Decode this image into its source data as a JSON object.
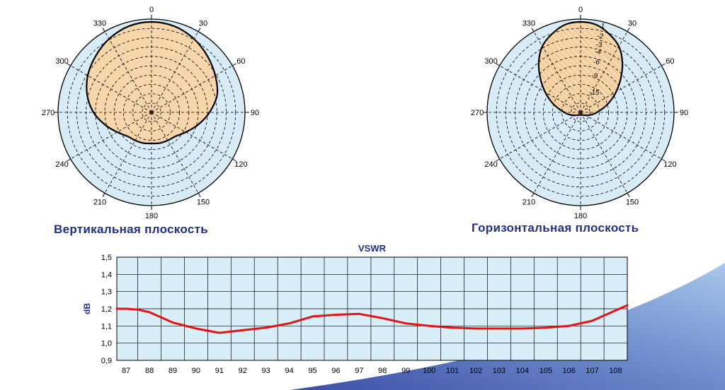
{
  "colors": {
    "disc": "#d8ecf7",
    "lobe": "#f8d6ab",
    "lobe_outline": "#000000",
    "grid": "#000000",
    "plane_title": "#1f2f8a",
    "chart_bg": "#d8eef8",
    "curve": "#e41414",
    "axis_label": "#1f2f8a",
    "swoosh_dark": "#3d4fa5",
    "swoosh_light": "#a7c7ea"
  },
  "polar_left": {
    "title": "Вертикальная плоскость",
    "angle_labels": [
      "0",
      "30",
      "60",
      "90",
      "120",
      "150",
      "180",
      "210",
      "240",
      "270",
      "300",
      "330"
    ]
  },
  "polar_right": {
    "title": "Горизонтальная плоскость",
    "angle_labels": [
      "0",
      "30",
      "60",
      "90",
      "120",
      "150",
      "180",
      "210",
      "240",
      "270",
      "300",
      "330"
    ],
    "level_labels": [
      "-1",
      "-2",
      "-3",
      "-4",
      "-6",
      "-9",
      "-15"
    ]
  },
  "chart_data": {
    "type": "line",
    "title": "VSWR",
    "ylabel": "dB",
    "xlabel": "",
    "x": [
      87,
      88,
      89,
      90,
      91,
      92,
      93,
      94,
      95,
      96,
      97,
      98,
      99,
      100,
      101,
      102,
      103,
      104,
      105,
      106,
      107,
      108
    ],
    "xlim": [
      86.6,
      108.5
    ],
    "ylim": [
      0.9,
      1.5
    ],
    "yticks": [
      "0,9",
      "1,0",
      "1,1",
      "1,2",
      "1,3",
      "1,4",
      "1,5"
    ],
    "grid": true,
    "series": [
      {
        "x": [
          86.6,
          87,
          87.5,
          88,
          89,
          90,
          91,
          92,
          93,
          94,
          95,
          96,
          97,
          98,
          99,
          100,
          101,
          102,
          103,
          104,
          105,
          106,
          107,
          108,
          108.5
        ],
        "values": [
          1.2,
          1.2,
          1.195,
          1.18,
          1.12,
          1.085,
          1.06,
          1.075,
          1.09,
          1.115,
          1.155,
          1.165,
          1.17,
          1.145,
          1.115,
          1.1,
          1.09,
          1.085,
          1.085,
          1.085,
          1.09,
          1.1,
          1.13,
          1.19,
          1.22
        ]
      }
    ]
  }
}
